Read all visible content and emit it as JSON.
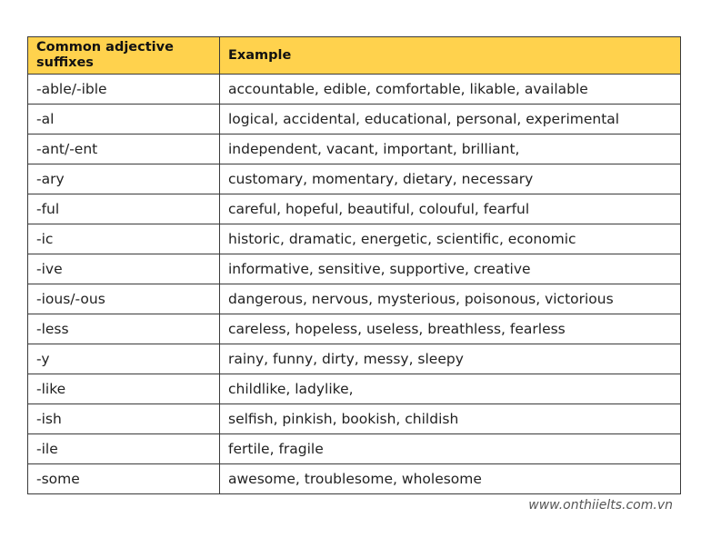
{
  "table": {
    "headers": [
      "Common adjective suffixes",
      "Example"
    ],
    "rows": [
      {
        "suffix": "-able/-ible",
        "example": "accountable, edible, comfortable, likable, available"
      },
      {
        "suffix": "-al",
        "example": "logical, accidental, educational, personal, experimental"
      },
      {
        "suffix": "-ant/-ent",
        "example": "independent, vacant, important, brilliant,"
      },
      {
        "suffix": "-ary",
        "example": "customary, momentary, dietary, necessary"
      },
      {
        "suffix": "-ful",
        "example": "careful, hopeful, beautiful, colouful, fearful"
      },
      {
        "suffix": "-ic",
        "example": "historic, dramatic, energetic, scientific, economic"
      },
      {
        "suffix": "-ive",
        "example": "informative, sensitive, supportive, creative"
      },
      {
        "suffix": "-ious/-ous",
        "example": "dangerous, nervous, mysterious, poisonous, victorious"
      },
      {
        "suffix": "-less",
        "example": "careless, hopeless, useless, breathless, fearless"
      },
      {
        "suffix": "-y",
        "example": "rainy, funny, dirty, messy, sleepy"
      },
      {
        "suffix": "-like",
        "example": "childlike, ladylike,"
      },
      {
        "suffix": "-ish",
        "example": "selfish,  pinkish, bookish, childish"
      },
      {
        "suffix": "-ile",
        "example": "fertile, fragile"
      },
      {
        "suffix": "-some",
        "example": "awesome, troublesome, wholesome"
      }
    ]
  },
  "watermark": "www.onthiielts.com.vn",
  "colors": {
    "header_bg": "#ffd24d",
    "border": "#3a3a3a"
  }
}
